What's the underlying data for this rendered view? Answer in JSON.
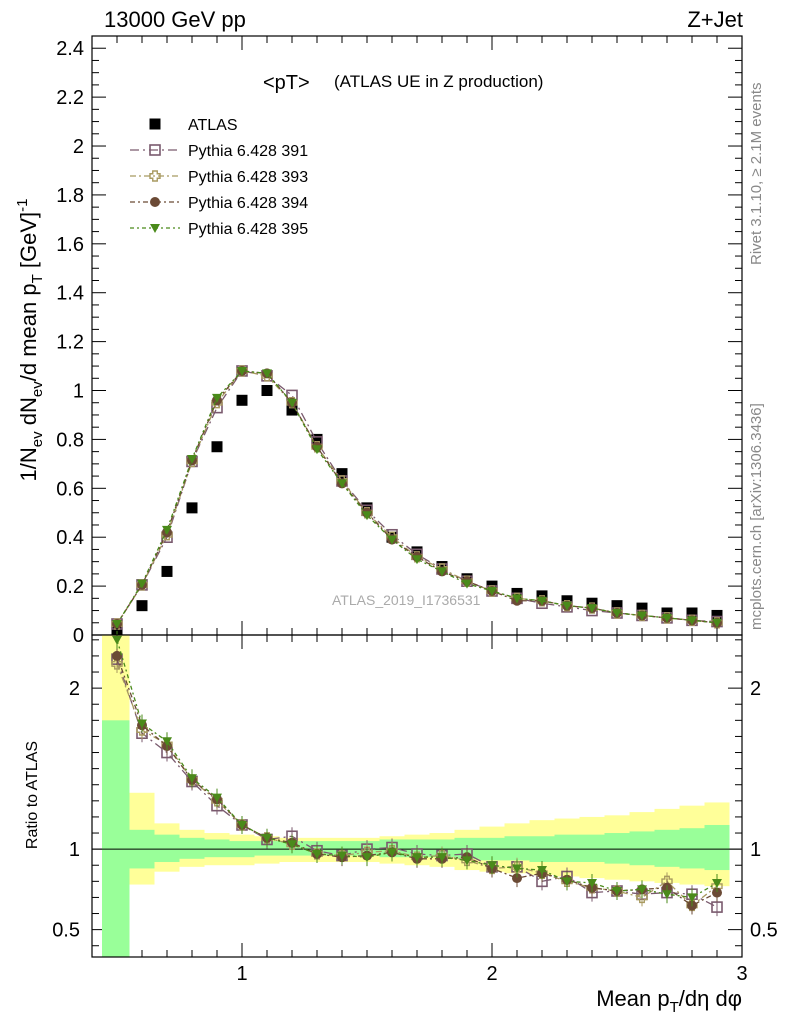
{
  "header": {
    "energy_label": "13000 GeV pp",
    "process_label": "Z+Jet"
  },
  "side_labels": {
    "rivet": "Rivet 3.1.10, ≥ 2.1M events",
    "mcplots": "mcplots.cern.ch [arXiv:1306.3436]"
  },
  "chart_data": [
    {
      "type": "scatter",
      "title": "<pT>",
      "subtitle": "(ATLAS UE in Z production)",
      "watermark": "ATLAS_2019_I1736531",
      "ylabel": "1/N_ev dN_ev/d mean p_T [GeV]^-1",
      "xlim": [
        0.4,
        3.0
      ],
      "ylim": [
        0,
        2.45
      ],
      "yticks": [
        "0",
        "0.2",
        "0.4",
        "0.6",
        "0.8",
        "1",
        "1.2",
        "1.4",
        "1.6",
        "1.8",
        "2",
        "2.2",
        "2.4"
      ],
      "legend_position": "top-left",
      "x": [
        0.5,
        0.6,
        0.7,
        0.8,
        0.9,
        1.0,
        1.1,
        1.2,
        1.3,
        1.4,
        1.5,
        1.6,
        1.7,
        1.8,
        1.9,
        2.0,
        2.1,
        2.2,
        2.3,
        2.4,
        2.5,
        2.6,
        2.7,
        2.8,
        2.9
      ],
      "series": [
        {
          "name": "ATLAS",
          "marker": "filled-square",
          "color": "#000000",
          "values": [
            0.02,
            0.12,
            0.26,
            0.52,
            0.77,
            0.96,
            1.0,
            0.92,
            0.8,
            0.66,
            0.52,
            0.4,
            0.34,
            0.28,
            0.23,
            0.2,
            0.17,
            0.16,
            0.14,
            0.13,
            0.12,
            0.11,
            0.09,
            0.09,
            0.08
          ]
        },
        {
          "name": "Pythia 6.428 391",
          "marker": "open-square",
          "color": "#7a5a6e",
          "values": [
            0.045,
            0.205,
            0.4,
            0.71,
            0.93,
            1.08,
            1.06,
            0.98,
            0.79,
            0.63,
            0.51,
            0.41,
            0.33,
            0.27,
            0.22,
            0.18,
            0.15,
            0.13,
            0.115,
            0.1,
            0.09,
            0.08,
            0.07,
            0.06,
            0.055
          ]
        },
        {
          "name": "Pythia 6.428 393",
          "marker": "open-cross",
          "color": "#a89a60",
          "values": [
            0.045,
            0.205,
            0.41,
            0.71,
            0.95,
            1.08,
            1.06,
            0.95,
            0.77,
            0.63,
            0.5,
            0.4,
            0.32,
            0.27,
            0.22,
            0.18,
            0.15,
            0.14,
            0.12,
            0.11,
            0.09,
            0.08,
            0.07,
            0.06,
            0.05
          ]
        },
        {
          "name": "Pythia 6.428 394",
          "marker": "filled-circle",
          "color": "#6b4a35",
          "values": [
            0.045,
            0.205,
            0.42,
            0.715,
            0.96,
            1.08,
            1.07,
            0.95,
            0.77,
            0.62,
            0.5,
            0.39,
            0.32,
            0.26,
            0.22,
            0.18,
            0.14,
            0.14,
            0.12,
            0.11,
            0.09,
            0.08,
            0.07,
            0.06,
            0.05
          ]
        },
        {
          "name": "Pythia 6.428 395",
          "marker": "filled-triangle-down",
          "color": "#4a8a1a",
          "values": [
            0.045,
            0.21,
            0.43,
            0.72,
            0.97,
            1.08,
            1.07,
            0.95,
            0.76,
            0.62,
            0.49,
            0.39,
            0.31,
            0.26,
            0.21,
            0.18,
            0.15,
            0.14,
            0.12,
            0.11,
            0.09,
            0.08,
            0.07,
            0.06,
            0.05
          ]
        }
      ]
    },
    {
      "type": "scatter",
      "ylabel": "Ratio to ATLAS",
      "xlabel": "Mean p_T/dη dφ",
      "xlim": [
        0.4,
        3.0
      ],
      "ylim": [
        0.33,
        2.33
      ],
      "yticks": [
        "0.5",
        "1",
        "2"
      ],
      "xticks": [
        "1",
        "2",
        "3"
      ],
      "bands": {
        "x_edges": [
          0.45,
          0.55,
          0.65,
          0.75,
          0.85,
          0.95,
          1.05,
          1.15,
          1.25,
          1.35,
          1.45,
          1.55,
          1.65,
          1.75,
          1.85,
          1.95,
          2.05,
          2.15,
          2.25,
          2.35,
          2.45,
          2.55,
          2.65,
          2.75,
          2.85,
          2.95
        ],
        "stat_up": [
          1.8,
          1.12,
          1.09,
          1.07,
          1.06,
          1.05,
          1.05,
          1.05,
          1.05,
          1.05,
          1.05,
          1.06,
          1.06,
          1.06,
          1.07,
          1.07,
          1.08,
          1.08,
          1.09,
          1.09,
          1.1,
          1.11,
          1.12,
          1.13,
          1.15
        ],
        "stat_down": [
          0.2,
          0.88,
          0.92,
          0.94,
          0.95,
          0.95,
          0.96,
          0.96,
          0.96,
          0.96,
          0.96,
          0.95,
          0.95,
          0.95,
          0.94,
          0.93,
          0.93,
          0.92,
          0.92,
          0.92,
          0.91,
          0.9,
          0.89,
          0.88,
          0.87
        ],
        "total_up": [
          2.33,
          1.35,
          1.16,
          1.12,
          1.1,
          1.09,
          1.08,
          1.07,
          1.07,
          1.07,
          1.07,
          1.08,
          1.09,
          1.1,
          1.12,
          1.14,
          1.16,
          1.18,
          1.19,
          1.2,
          1.21,
          1.23,
          1.25,
          1.27,
          1.29
        ],
        "total_down": [
          0.2,
          0.78,
          0.86,
          0.89,
          0.9,
          0.9,
          0.91,
          0.92,
          0.92,
          0.92,
          0.92,
          0.91,
          0.9,
          0.89,
          0.87,
          0.86,
          0.85,
          0.84,
          0.83,
          0.82,
          0.81,
          0.8,
          0.79,
          0.78,
          0.77
        ]
      },
      "x": [
        0.5,
        0.6,
        0.7,
        0.8,
        0.9,
        1.0,
        1.1,
        1.2,
        1.3,
        1.4,
        1.5,
        1.6,
        1.7,
        1.8,
        1.9,
        2.0,
        2.1,
        2.2,
        2.3,
        2.4,
        2.5,
        2.6,
        2.7,
        2.8,
        2.9
      ],
      "series": [
        {
          "name": "Pythia 6.428 391",
          "marker": "open-square",
          "color": "#7a5a6e",
          "values": [
            2.18,
            1.72,
            1.6,
            1.42,
            1.27,
            1.15,
            1.06,
            1.08,
            0.99,
            0.96,
            1.0,
            1.01,
            0.97,
            0.96,
            0.97,
            0.89,
            0.89,
            0.8,
            0.83,
            0.73,
            0.74,
            0.72,
            0.73,
            0.72,
            0.64
          ]
        },
        {
          "name": "Pythia 6.428 393",
          "marker": "open-cross",
          "color": "#a89a60",
          "values": [
            2.15,
            1.74,
            1.65,
            1.43,
            1.3,
            1.15,
            1.07,
            1.03,
            0.97,
            0.96,
            0.98,
            0.99,
            0.95,
            0.96,
            0.93,
            0.88,
            0.89,
            0.85,
            0.8,
            0.76,
            0.74,
            0.7,
            0.8,
            0.65,
            0.77
          ]
        },
        {
          "name": "Pythia 6.428 394",
          "marker": "filled-circle",
          "color": "#6b4a35",
          "values": [
            2.2,
            1.77,
            1.64,
            1.43,
            1.31,
            1.15,
            1.07,
            1.04,
            0.97,
            0.95,
            0.96,
            0.98,
            0.94,
            0.94,
            0.95,
            0.88,
            0.82,
            0.85,
            0.81,
            0.76,
            0.74,
            0.75,
            0.76,
            0.65,
            0.73
          ]
        },
        {
          "name": "Pythia 6.428 395",
          "marker": "filled-triangle-down",
          "color": "#4a8a1a",
          "values": [
            2.3,
            1.78,
            1.67,
            1.44,
            1.32,
            1.15,
            1.07,
            1.03,
            0.97,
            0.96,
            0.95,
            0.98,
            0.95,
            0.95,
            0.93,
            0.9,
            0.88,
            0.87,
            0.8,
            0.79,
            0.74,
            0.75,
            0.72,
            0.7,
            0.79
          ]
        }
      ]
    }
  ]
}
